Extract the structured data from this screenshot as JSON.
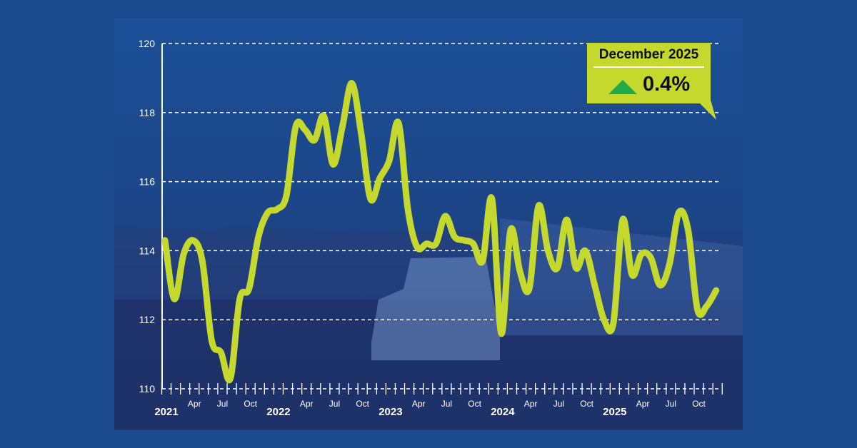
{
  "callout": {
    "title": "December 2025",
    "change": "0.4%",
    "direction_icon": "triangle-up-icon",
    "direction_color": "#22a94a",
    "background": "#c4d82e"
  },
  "colors": {
    "line": "#c5d82e",
    "background": "#1c4a8e",
    "grid": "#ffffff"
  },
  "chart_data": {
    "type": "line",
    "title": "",
    "xlabel": "",
    "ylabel": "",
    "ylim": [
      110,
      120
    ],
    "yticks": [
      110,
      112,
      114,
      116,
      118,
      120
    ],
    "grid": "horizontal dashed",
    "x_start": "2021-01",
    "x_end": "2025-12",
    "x_tick_labels": [
      {
        "month": "2021-01",
        "label": "2021",
        "bold": true
      },
      {
        "month": "2021-04",
        "label": "Apr"
      },
      {
        "month": "2021-07",
        "label": "Jul"
      },
      {
        "month": "2021-10",
        "label": "Oct"
      },
      {
        "month": "2022-01",
        "label": "2022",
        "bold": true
      },
      {
        "month": "2022-04",
        "label": "Apr"
      },
      {
        "month": "2022-07",
        "label": "Jul"
      },
      {
        "month": "2022-10",
        "label": "Oct"
      },
      {
        "month": "2023-01",
        "label": "2023",
        "bold": true
      },
      {
        "month": "2023-04",
        "label": "Apr"
      },
      {
        "month": "2023-07",
        "label": "Jul"
      },
      {
        "month": "2023-10",
        "label": "Oct"
      },
      {
        "month": "2024-01",
        "label": "2024",
        "bold": true
      },
      {
        "month": "2024-04",
        "label": "Apr"
      },
      {
        "month": "2024-07",
        "label": "Jul"
      },
      {
        "month": "2024-10",
        "label": "Oct"
      },
      {
        "month": "2025-01",
        "label": "2025",
        "bold": true
      },
      {
        "month": "2025-04",
        "label": "Apr"
      },
      {
        "month": "2025-07",
        "label": "Jul"
      },
      {
        "month": "2025-10",
        "label": "Oct"
      }
    ],
    "values": [
      114.3,
      112.6,
      113.9,
      114.3,
      113.7,
      111.4,
      111.05,
      110.3,
      112.6,
      112.9,
      114.4,
      115.1,
      115.2,
      115.6,
      117.6,
      117.5,
      117.2,
      117.9,
      116.5,
      117.6,
      118.85,
      117.4,
      115.5,
      116.1,
      116.6,
      117.7,
      115.2,
      114.1,
      114.2,
      114.2,
      115.0,
      114.4,
      114.3,
      114.2,
      113.7,
      115.5,
      111.6,
      114.6,
      113.4,
      112.9,
      115.3,
      114.0,
      113.5,
      114.9,
      113.5,
      114.0,
      113.0,
      112.0,
      111.9,
      114.9,
      113.3,
      113.9,
      113.8,
      113.0,
      113.6,
      115.1,
      114.6,
      112.3,
      112.4,
      112.85
    ]
  }
}
